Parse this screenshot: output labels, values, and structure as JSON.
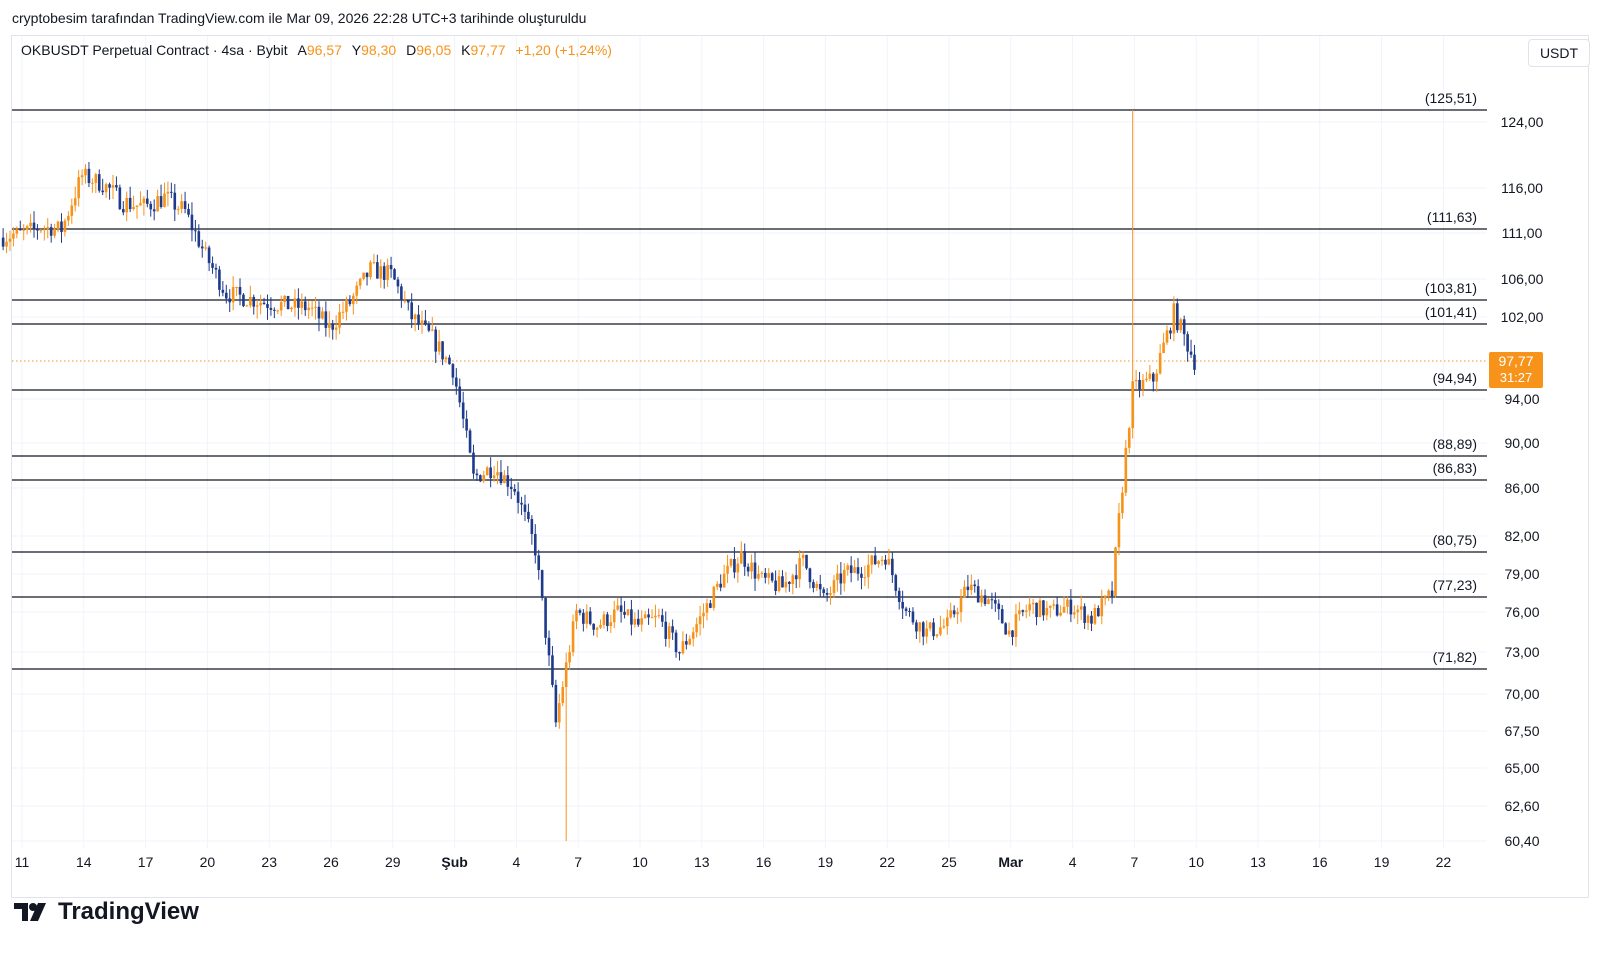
{
  "caption": "cryptobesim tarafından TradingView.com ile Mar 09, 2026 22:28 UTC+3 tarihinde oluşturuldu",
  "legend": {
    "symbol": "OKBUSDT Perpetual Contract · 4sa · Bybit",
    "open_label": "A",
    "open": "96,57",
    "high_label": "Y",
    "high": "98,30",
    "low_label": "D",
    "low": "96,05",
    "close_label": "K",
    "close": "97,77",
    "change": "+1,20 (+1,24%)"
  },
  "currency": "USDT",
  "price_tag": {
    "price": "97,77",
    "countdown": "31:27"
  },
  "brand": "TradingView",
  "colors": {
    "up": "#f7931a",
    "down": "#1e3a8a",
    "grid": "#f0f3fa",
    "line": "#131722"
  },
  "chart_data": {
    "type": "candlestick",
    "y_axis_ticks": [
      "124,00",
      "116,00",
      "111,00",
      "106,00",
      "102,00",
      "94,00",
      "90,00",
      "86,00",
      "82,00",
      "79,00",
      "76,00",
      "73,00",
      "70,00",
      "67,50",
      "65,00",
      "62,60",
      "60,40"
    ],
    "x_axis_ticks": [
      "11",
      "14",
      "17",
      "20",
      "23",
      "26",
      "29",
      "Şub",
      "4",
      "7",
      "10",
      "13",
      "16",
      "19",
      "22",
      "25",
      "Mar",
      "4",
      "7",
      "10",
      "13",
      "16",
      "19",
      "22"
    ],
    "horizontal_levels": [
      "(125,51)",
      "(111,63)",
      "(103,81)",
      "(101,41)",
      "(94,94)",
      "(88,89)",
      "(86,83)",
      "(80,75)",
      "(77,23)",
      "(71,82)"
    ],
    "last_price": 97.77,
    "price_path": [
      {
        "date": "Jan 10",
        "price": 110.5
      },
      {
        "date": "Jan 11",
        "price": 111.0
      },
      {
        "date": "Jan 12",
        "price": 111.8
      },
      {
        "date": "Jan 13",
        "price": 111.5
      },
      {
        "date": "Jan 14",
        "price": 117.5
      },
      {
        "date": "Jan 15",
        "price": 116.5
      },
      {
        "date": "Jan 16",
        "price": 114.5
      },
      {
        "date": "Jan 17",
        "price": 114.0
      },
      {
        "date": "Jan 18",
        "price": 115.0
      },
      {
        "date": "Jan 19",
        "price": 113.5
      },
      {
        "date": "Jan 20",
        "price": 108.5
      },
      {
        "date": "Jan 21",
        "price": 104.5
      },
      {
        "date": "Jan 22",
        "price": 104.0
      },
      {
        "date": "Jan 23",
        "price": 103.5
      },
      {
        "date": "Jan 24",
        "price": 103.2
      },
      {
        "date": "Jan 25",
        "price": 103.0
      },
      {
        "date": "Jan 26",
        "price": 101.0
      },
      {
        "date": "Jan 27",
        "price": 103.5
      },
      {
        "date": "Jan 28",
        "price": 107.0
      },
      {
        "date": "Jan 29",
        "price": 106.5
      },
      {
        "date": "Jan 30",
        "price": 102.0
      },
      {
        "date": "Jan 31",
        "price": 100.0
      },
      {
        "date": "Feb 1",
        "price": 97.0
      },
      {
        "date": "Feb 2",
        "price": 87.0
      },
      {
        "date": "Feb 3",
        "price": 88.0
      },
      {
        "date": "Feb 4",
        "price": 86.0
      },
      {
        "date": "Feb 5",
        "price": 81.0
      },
      {
        "date": "Feb 6",
        "price": 68.0
      },
      {
        "date": "Feb 7",
        "price": 76.0
      },
      {
        "date": "Feb 8",
        "price": 75.0
      },
      {
        "date": "Feb 9",
        "price": 76.0
      },
      {
        "date": "Feb 10",
        "price": 75.0
      },
      {
        "date": "Feb 11",
        "price": 75.5
      },
      {
        "date": "Feb 12",
        "price": 73.0
      },
      {
        "date": "Feb 13",
        "price": 75.5
      },
      {
        "date": "Feb 14",
        "price": 78.5
      },
      {
        "date": "Feb 15",
        "price": 80.5
      },
      {
        "date": "Feb 16",
        "price": 78.5
      },
      {
        "date": "Feb 17",
        "price": 78.0
      },
      {
        "date": "Feb 18",
        "price": 80.0
      },
      {
        "date": "Feb 19",
        "price": 77.0
      },
      {
        "date": "Feb 20",
        "price": 79.0
      },
      {
        "date": "Feb 21",
        "price": 79.5
      },
      {
        "date": "Feb 22",
        "price": 80.5
      },
      {
        "date": "Feb 23",
        "price": 76.0
      },
      {
        "date": "Feb 24",
        "price": 74.5
      },
      {
        "date": "Feb 25",
        "price": 75.0
      },
      {
        "date": "Feb 26",
        "price": 78.0
      },
      {
        "date": "Feb 27",
        "price": 77.0
      },
      {
        "date": "Feb 28",
        "price": 74.5
      },
      {
        "date": "Mar 1",
        "price": 76.5
      },
      {
        "date": "Mar 2",
        "price": 76.0
      },
      {
        "date": "Mar 3",
        "price": 76.5
      },
      {
        "date": "Mar 4",
        "price": 75.5
      },
      {
        "date": "Mar 5",
        "price": 77.5
      },
      {
        "date": "Mar 6",
        "price": 95.0
      },
      {
        "date": "Mar 7",
        "price": 96.0
      },
      {
        "date": "Mar 8",
        "price": 102.5
      },
      {
        "date": "Mar 9",
        "price": 97.77
      }
    ]
  }
}
